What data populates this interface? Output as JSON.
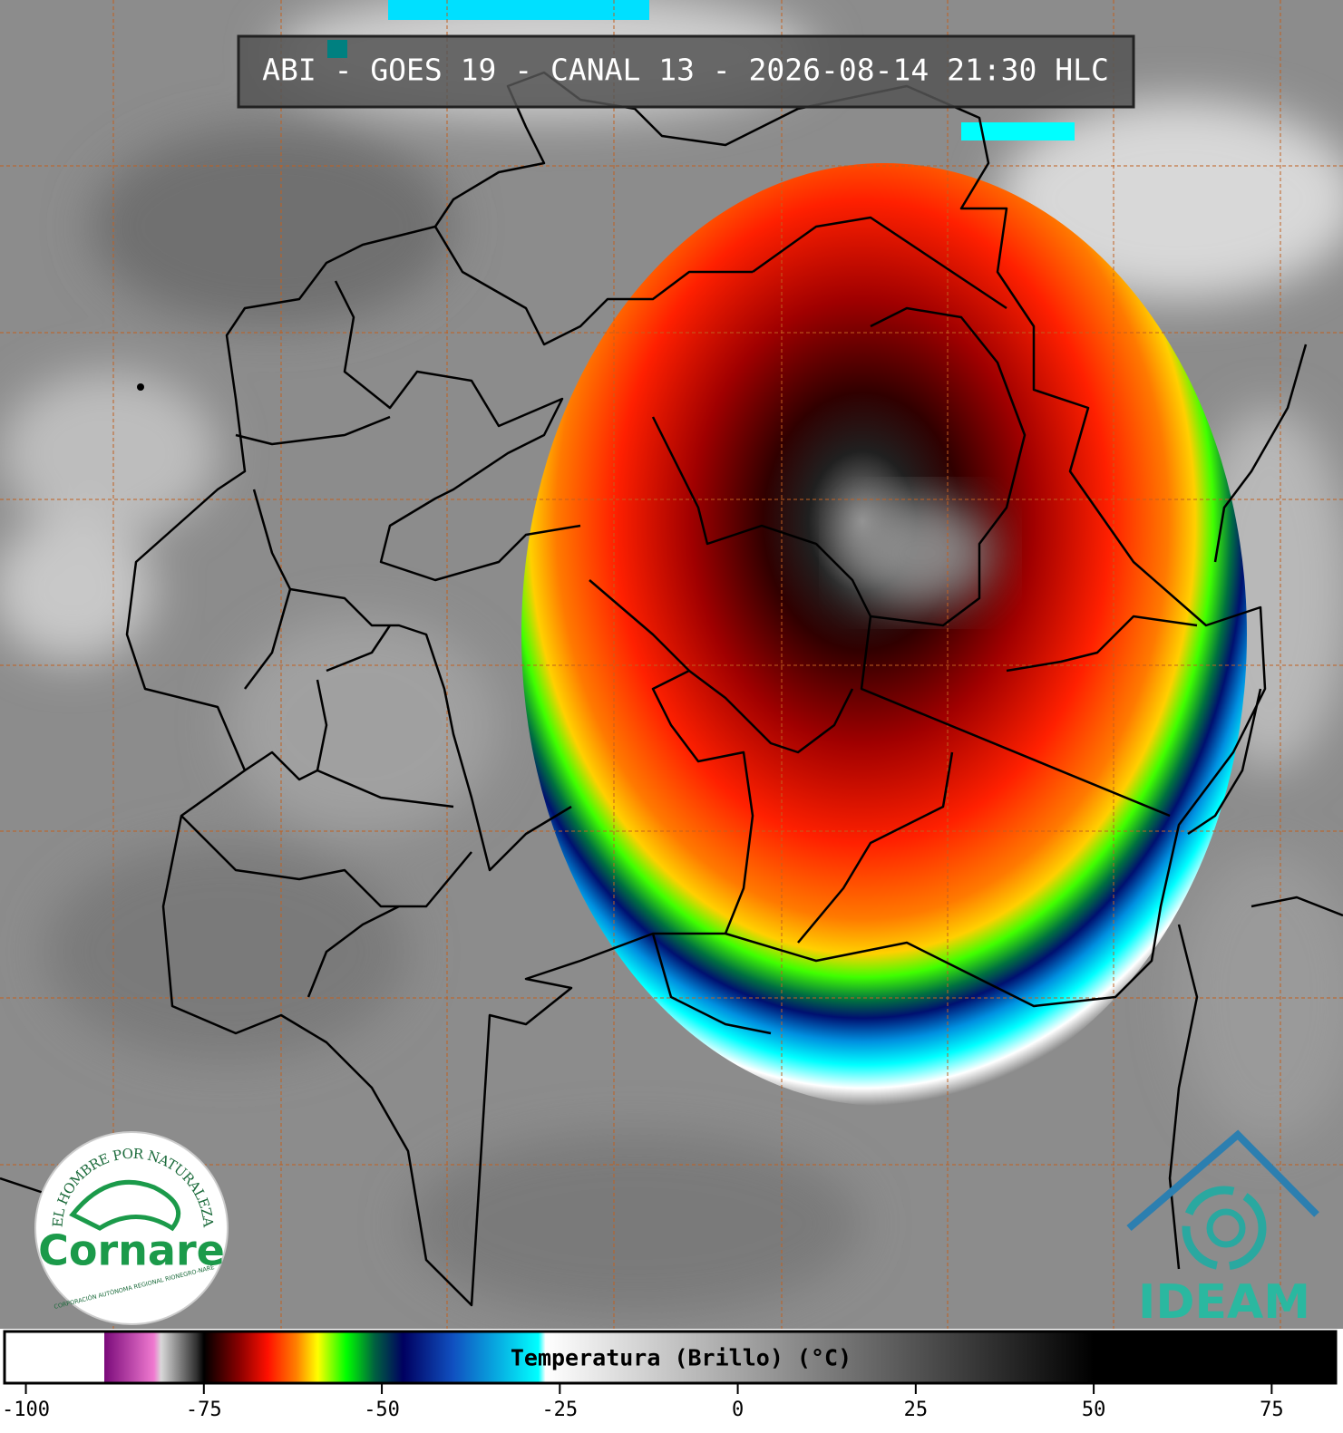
{
  "header": {
    "title": "ABI - GOES 19 - CANAL 13 - 2026-08-14 21:30 HLC"
  },
  "colorbar": {
    "label": "Temperatura (Brillo) (°C)",
    "xlim": [
      -103,
      84
    ],
    "ticks": [
      -100,
      -75,
      -50,
      -25,
      0,
      25,
      50,
      75
    ],
    "colorscale": [
      {
        "value": -103,
        "color": "#ffffff"
      },
      {
        "value": -89,
        "color": "#ffffff"
      },
      {
        "value": -89,
        "color": "#7a0a7a"
      },
      {
        "value": -82,
        "color": "#f07ad0"
      },
      {
        "value": -81,
        "color": "#d8d8d8"
      },
      {
        "value": -76,
        "color": "#303030"
      },
      {
        "value": -75,
        "color": "#000000"
      },
      {
        "value": -70,
        "color": "#8a0000"
      },
      {
        "value": -66,
        "color": "#ff1000"
      },
      {
        "value": -62,
        "color": "#ff8000"
      },
      {
        "value": -59,
        "color": "#ffff00"
      },
      {
        "value": -55,
        "color": "#00ff00"
      },
      {
        "value": -51,
        "color": "#006040"
      },
      {
        "value": -47,
        "color": "#000060"
      },
      {
        "value": -40,
        "color": "#1050c0"
      },
      {
        "value": -28,
        "color": "#00ffff"
      },
      {
        "value": -27,
        "color": "#ffffff"
      },
      {
        "value": 50,
        "color": "#000000"
      },
      {
        "value": 84,
        "color": "#000000"
      }
    ]
  },
  "logos": {
    "cornare_motto": "EL HOMBRE POR NATURALEZA",
    "cornare_name": "Cornare",
    "cornare_subtitle": "CORPORACIÓN AUTÓNOMA REGIONAL RIONEGRO-NARE",
    "ideam": "IDEAM"
  }
}
